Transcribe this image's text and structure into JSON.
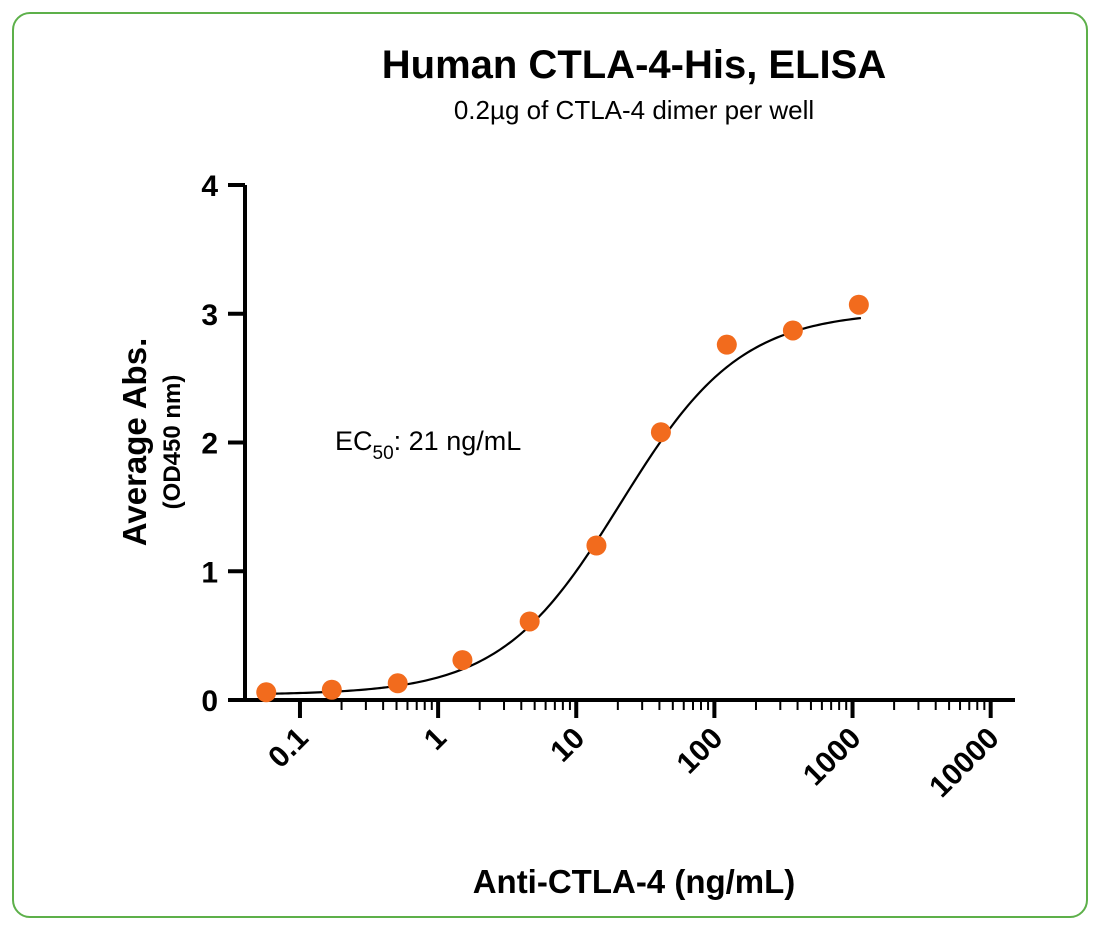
{
  "chart_data": {
    "type": "scatter",
    "title": "Human CTLA-4-His, ELISA",
    "subtitle": "0.2µg of CTLA-4 dimer per well",
    "xlabel": "Anti-CTLA-4 (ng/mL)",
    "ylabel": "Average Abs.",
    "ylabel_sub": "(OD450 nm)",
    "x_scale": "log",
    "xlim": [
      0.04,
      15000
    ],
    "ylim": [
      0,
      4
    ],
    "x_ticks": [
      "0.1",
      "1",
      "10",
      "100",
      "1000",
      "10000"
    ],
    "x_tick_values": [
      0.1,
      1,
      10,
      100,
      1000,
      10000
    ],
    "y_ticks": [
      "0",
      "1",
      "2",
      "3",
      "4"
    ],
    "y_tick_values": [
      0,
      1,
      2,
      3,
      4
    ],
    "grid": false,
    "annotation": {
      "prefix": "EC",
      "subscript": "50",
      "suffix": ": 21 ng/mL"
    },
    "series": [
      {
        "color": "#f26b1d",
        "points": [
          {
            "x": 0.057,
            "y": 0.06
          },
          {
            "x": 0.17,
            "y": 0.08
          },
          {
            "x": 0.51,
            "y": 0.13
          },
          {
            "x": 1.5,
            "y": 0.31
          },
          {
            "x": 4.6,
            "y": 0.61
          },
          {
            "x": 14,
            "y": 1.2
          },
          {
            "x": 41,
            "y": 2.08
          },
          {
            "x": 123,
            "y": 2.76
          },
          {
            "x": 370,
            "y": 2.87
          },
          {
            "x": 1111,
            "y": 3.07
          }
        ]
      }
    ],
    "fit_curve": {
      "type": "4PL",
      "color": "#000000",
      "bottom": 0.04,
      "top": 3.02,
      "ec50": 21,
      "hill": 1.0
    }
  }
}
